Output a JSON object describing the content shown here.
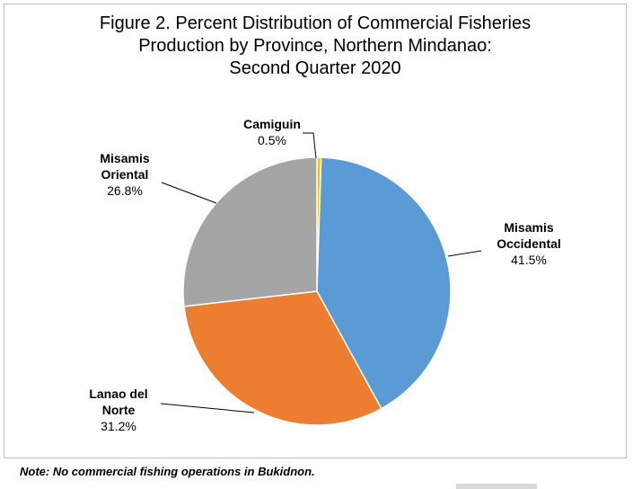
{
  "chart_data": {
    "type": "pie",
    "title_lines": [
      "Figure 2. Percent Distribution of Commercial Fisheries",
      "Production by Province, Northern Mindanao:",
      "Second Quarter 2020"
    ],
    "slices": [
      {
        "name_lines": [
          "Camiguin"
        ],
        "value": 0.5,
        "value_label": "0.5%",
        "color": "#ffc000"
      },
      {
        "name_lines": [
          "Misamis",
          "Occidental"
        ],
        "value": 41.5,
        "value_label": "41.5%",
        "color": "#5b9bd5"
      },
      {
        "name_lines": [
          "Lanao del",
          "Norte"
        ],
        "value": 31.2,
        "value_label": "31.2%",
        "color": "#ed7d31"
      },
      {
        "name_lines": [
          "Misamis",
          "Oriental"
        ],
        "value": 26.8,
        "value_label": "26.8%",
        "color": "#a5a5a5"
      }
    ]
  },
  "footnote": "Note:  No commercial fishing operations in Bukidnon."
}
